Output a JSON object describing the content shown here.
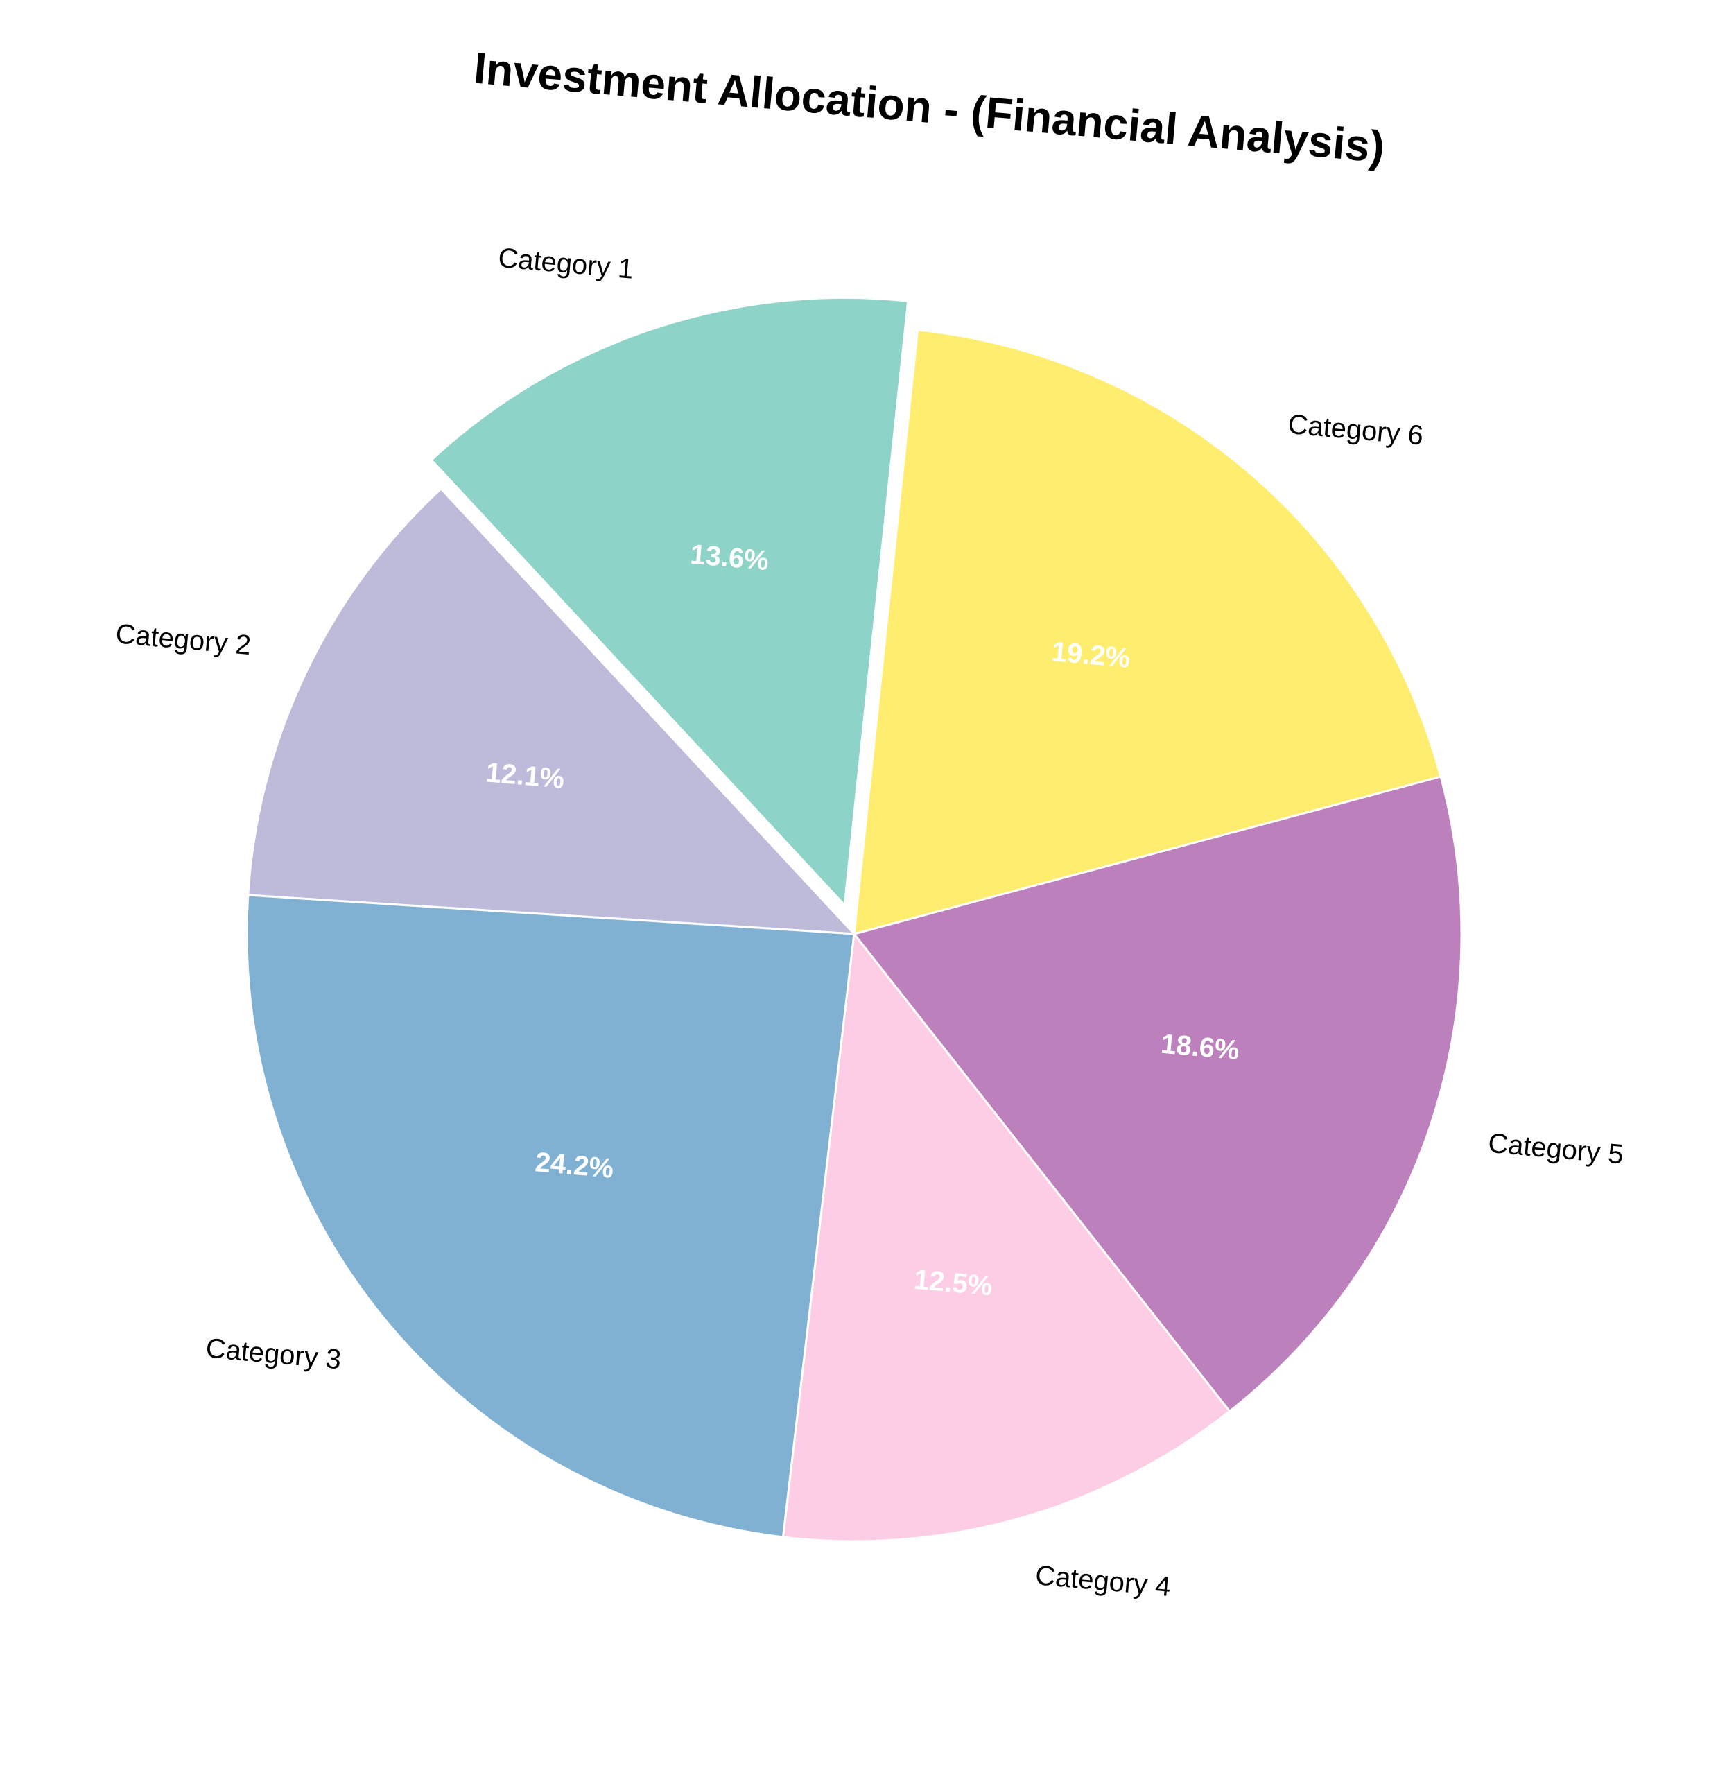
{
  "chart_data": {
    "type": "pie",
    "title": "Investment Allocation - (Financial Analysis)",
    "categories": [
      "Category 1",
      "Category 2",
      "Category 3",
      "Category 4",
      "Category 5",
      "Category 6"
    ],
    "values": [
      13.6,
      12.1,
      24.2,
      12.5,
      18.6,
      19.2
    ],
    "value_labels": [
      "13.6%",
      "12.1%",
      "24.2%",
      "12.5%",
      "18.6%",
      "19.2%"
    ],
    "colors": [
      "#8dd3c7",
      "#bebada",
      "#80b1d3",
      "#fccde5",
      "#bc80bd",
      "#ffed6f"
    ],
    "exploded": [
      "Category 1"
    ],
    "legend": false
  }
}
